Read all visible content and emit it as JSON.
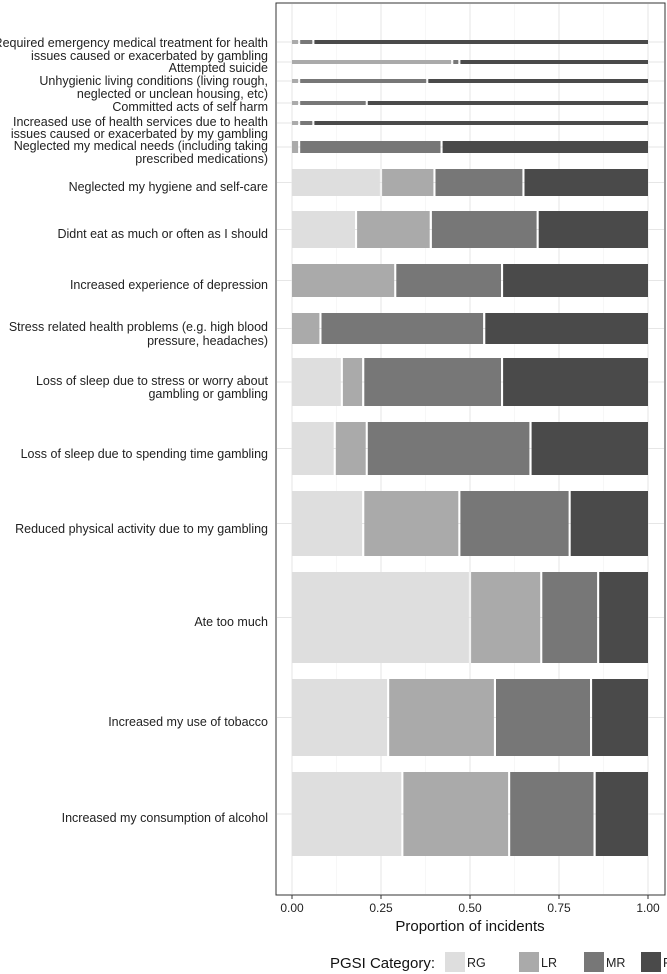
{
  "chart_data": {
    "type": "bar",
    "orientation": "horizontal",
    "stacked": true,
    "xlabel": "Proportion of incidents",
    "xlim": [
      0,
      1
    ],
    "xticks": [
      "0.00",
      "0.25",
      "0.50",
      "0.75",
      "1.00"
    ],
    "grid": true,
    "legend": {
      "title": "PGSI Category:",
      "position": "bottom",
      "entries": [
        "RG",
        "LR",
        "MR",
        "PG"
      ]
    },
    "colors": {
      "RG": "#dedede",
      "LR": "#aaaaaa",
      "MR": "#777777",
      "PG": "#4a4a4a"
    },
    "categories": [
      "Required emergency medical treatment for health issues caused or exacerbated by gambling",
      "Attempted suicide",
      "Unhygienic living conditions (living rough, neglected or unclean housing, etc)",
      "Committed acts of self harm",
      "Increased use of health services due to health issues caused or exacerbated by my gambling",
      "Neglected my medical needs (including taking prescribed medications)",
      "Neglected my hygiene and self-care",
      "Didnt eat as much or often as I should",
      "Increased experience of depression",
      "Stress related health problems (e.g. high blood pressure, headaches)",
      "Loss of sleep due to stress or worry about gambling or gambling",
      "Loss of sleep due to spending time gambling",
      "Reduced physical activity due to my gambling",
      "Ate too much",
      "Increased my use of tobacco",
      "Increased my consumption of alcohol"
    ],
    "series": [
      {
        "name": "RG",
        "values": [
          0.0,
          0.0,
          0.0,
          0.0,
          0.0,
          0.0,
          0.25,
          0.18,
          0.0,
          0.0,
          0.14,
          0.12,
          0.2,
          0.5,
          0.27,
          0.31
        ]
      },
      {
        "name": "LR",
        "values": [
          0.02,
          0.45,
          0.02,
          0.02,
          0.02,
          0.02,
          0.15,
          0.21,
          0.29,
          0.08,
          0.06,
          0.09,
          0.27,
          0.2,
          0.3,
          0.3
        ]
      },
      {
        "name": "MR",
        "values": [
          0.04,
          0.02,
          0.36,
          0.19,
          0.04,
          0.4,
          0.25,
          0.3,
          0.3,
          0.46,
          0.39,
          0.46,
          0.31,
          0.16,
          0.27,
          0.24
        ]
      },
      {
        "name": "PG",
        "values": [
          0.94,
          0.53,
          0.62,
          0.79,
          0.94,
          0.58,
          0.35,
          0.31,
          0.41,
          0.46,
          0.41,
          0.33,
          0.22,
          0.14,
          0.16,
          0.15
        ]
      }
    ]
  }
}
